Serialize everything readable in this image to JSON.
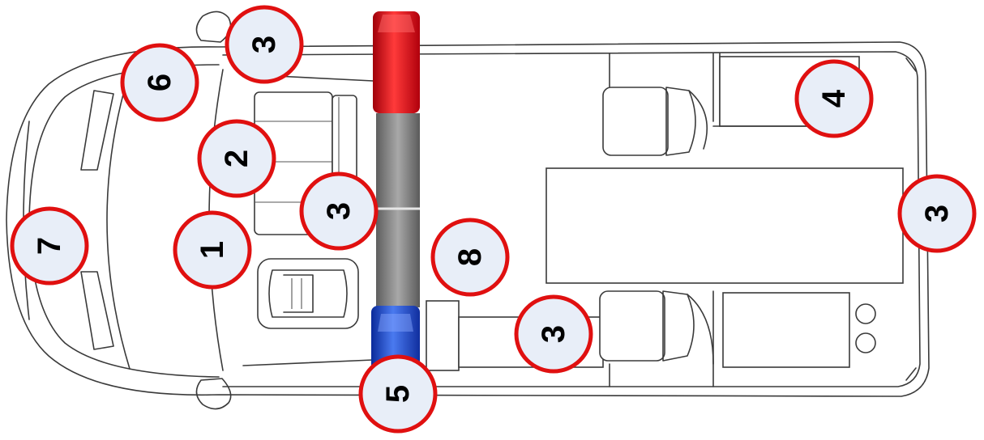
{
  "markers": [
    {
      "id": "m1",
      "label": "1"
    },
    {
      "id": "m2",
      "label": "2"
    },
    {
      "id": "m3a",
      "label": "3"
    },
    {
      "id": "m3b",
      "label": "3"
    },
    {
      "id": "m3c",
      "label": "3"
    },
    {
      "id": "m3d",
      "label": "3"
    },
    {
      "id": "m4",
      "label": "4"
    },
    {
      "id": "m5",
      "label": "5"
    },
    {
      "id": "m6",
      "label": "6"
    },
    {
      "id": "m7",
      "label": "7"
    },
    {
      "id": "m8",
      "label": "8"
    }
  ],
  "colors": {
    "marker_ring": "#e01010",
    "marker_fill": "#e8eef8",
    "lightbar_red": "#e0141e",
    "lightbar_blue": "#1e46c8",
    "lightbar_body": "#8a8a8a"
  }
}
